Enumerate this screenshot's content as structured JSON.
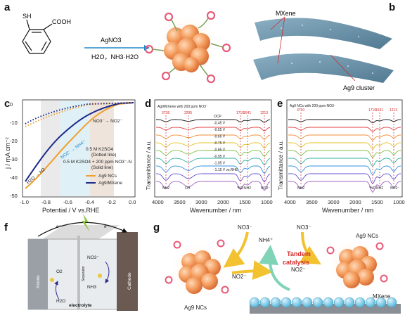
{
  "panels": {
    "a": {
      "letter": "a",
      "sh": "SH",
      "cooh": "COOH",
      "reagent": "AgNO3",
      "conditions": "H2O，NH3·H2O"
    },
    "b": {
      "letter": "b",
      "mxene": "MXene",
      "cluster": "Ag9 cluster"
    },
    "c": {
      "letter": "c",
      "ylabel": "j / mA cm⁻²",
      "xlabel": "Potential / V vs.RHE",
      "xticks": [
        "-1.0",
        "-0.8",
        "-0.6",
        "-0.4",
        "-0.2",
        "0.0"
      ],
      "yticks": [
        "0",
        "-10",
        "-20",
        "-30",
        "-40",
        "-50"
      ],
      "label_no3": "NO3⁻→ NO2⁻",
      "label_no2": "NO2⁻→ NH4⁺",
      "label_h2": "H2O → H2",
      "note1": "0.5 M K2SO4",
      "note2": "(Dotted line)",
      "note3": "0.5 M K2SO4 + 200 ppm NO3⁻-N",
      "note4": "(Solid line)",
      "legend": [
        "Ag9 NCs",
        "Ag9/MXene"
      ]
    },
    "d": {
      "letter": "d",
      "title": "Ag9/MXene with 200 ppm NO3⁻",
      "ylabel": "Transmittance / a.u.",
      "xlabel": "Wavenumber / nm",
      "xticks": [
        "4000",
        "3500",
        "3000",
        "2000",
        "1500",
        "1000"
      ],
      "peaks": [
        "3738",
        "3295",
        "1710",
        "1641",
        "1213"
      ],
      "potentials": [
        "OCP",
        "-0.45 V",
        "-0.55 V",
        "-0.65 V",
        "-0.75 V",
        "-0.85 V",
        "-0.95 V",
        "-1.05 V",
        "-1.15 V vs.RHE"
      ],
      "species": [
        "NH2",
        "OH",
        "*NO",
        "NH2",
        "NO2⁻"
      ]
    },
    "e": {
      "letter": "e",
      "title": "Ag9 NCs with 200 ppm NO3⁻",
      "ylabel": "Transmittance / a.u.",
      "xlabel": "Wavenumber / nm",
      "xticks": [
        "4000",
        "3500",
        "3000",
        "2000",
        "1500",
        "1000"
      ],
      "peaks": [
        "3750",
        "1710",
        "1641",
        "1213"
      ],
      "species": [
        "NH2",
        "*NO",
        "NH2",
        "NO2⁻"
      ]
    },
    "f": {
      "letter": "f",
      "anode": "Anode",
      "cathode": "Cathode",
      "separator": "Separator",
      "electrolyte": "electrolyte",
      "o2": "O2",
      "h2o": "H2O",
      "no3": "NO3⁻",
      "nh3": "NH3",
      "e1": "e⁻",
      "e2": "e⁻"
    },
    "g": {
      "letter": "g",
      "no3_left": "NO3⁻",
      "nh4": "NH4⁺",
      "no3_right": "NO3⁻",
      "tandem1": "Tandem",
      "tandem2": "catalysis",
      "no2_left": "NO2⁻",
      "no2_right": "NO2⁻",
      "ag9_left": "Ag9 NCs",
      "ag9_right": "Ag9 NCs",
      "mxene": "MXene"
    }
  },
  "colors": {
    "orange": "#f0a030",
    "navy": "#1e2a8a",
    "red": "#d22b2b",
    "teal": "#5fc7b0",
    "yellow": "#f2c230"
  }
}
